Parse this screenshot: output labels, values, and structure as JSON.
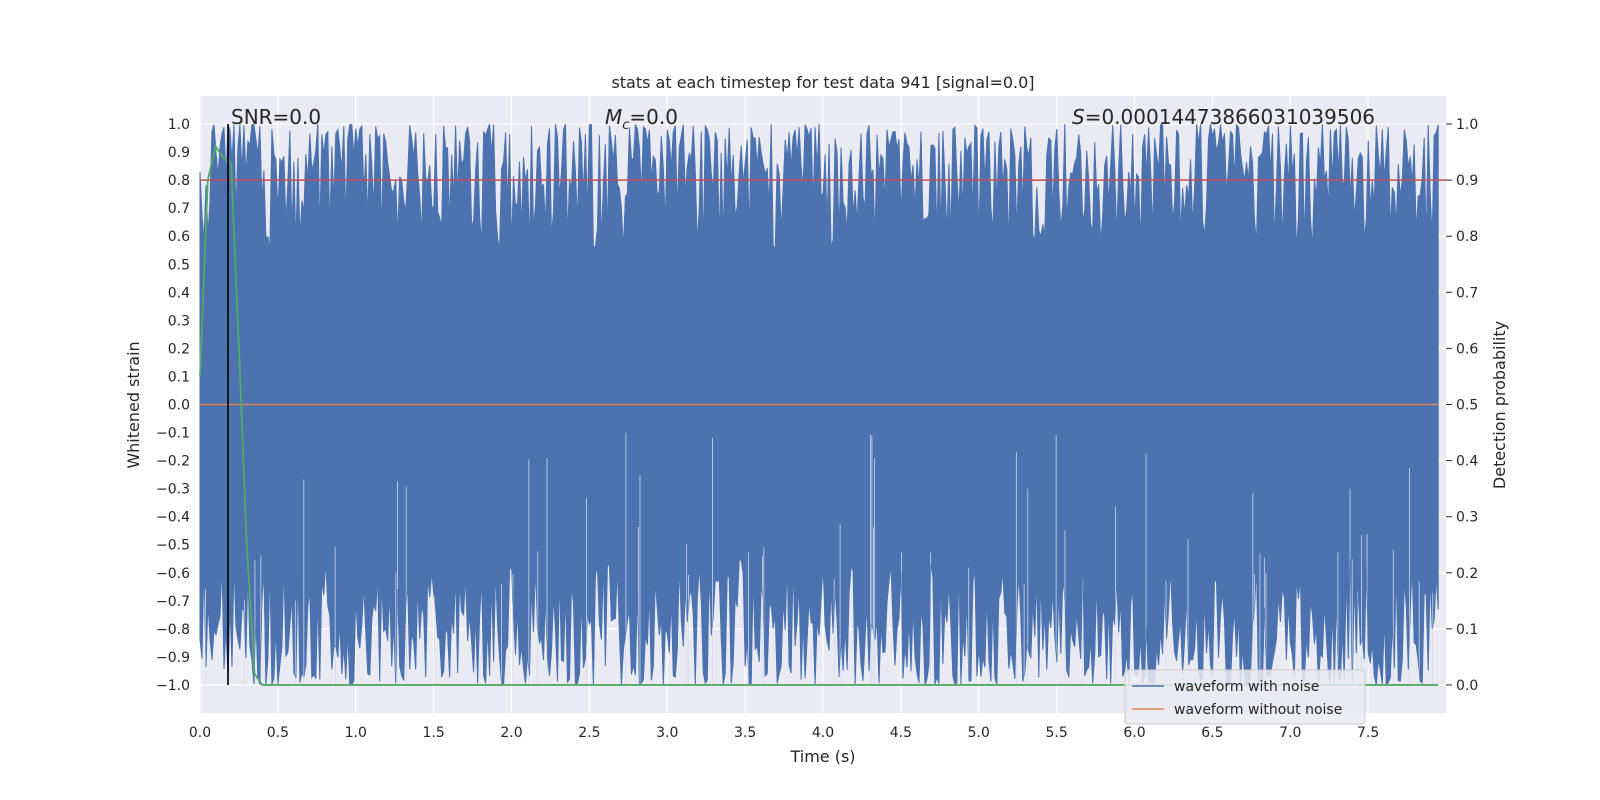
{
  "chart_data": {
    "type": "line",
    "title": "stats at each timestep for test data 941 [signal=0.0]",
    "xlabel": "Time (s)",
    "ylabel": "Whitened strain",
    "y2label": "Detection probability",
    "xlim": [
      0.0,
      8.0
    ],
    "ylim": [
      -1.1,
      1.1
    ],
    "y2lim": [
      -0.05,
      1.05
    ],
    "x_ticks": [
      0.0,
      0.5,
      1.0,
      1.5,
      2.0,
      2.5,
      3.0,
      3.5,
      4.0,
      4.5,
      5.0,
      5.5,
      6.0,
      6.5,
      7.0,
      7.5
    ],
    "x_tick_labels": [
      "0.0",
      "0.5",
      "1.0",
      "1.5",
      "2.0",
      "2.5",
      "3.0",
      "3.5",
      "4.0",
      "4.5",
      "5.0",
      "5.5",
      "6.0",
      "6.5",
      "7.0",
      "7.5"
    ],
    "y_ticks": [
      1.0,
      0.9,
      0.8,
      0.7,
      0.6,
      0.5,
      0.4,
      0.3,
      0.2,
      0.1,
      0.0,
      -0.1,
      -0.2,
      -0.3,
      -0.4,
      -0.5,
      -0.6,
      -0.7,
      -0.8,
      -0.9,
      -1.0
    ],
    "y_tick_labels": [
      "1.0",
      "0.9",
      "0.8",
      "0.7",
      "0.6",
      "0.5",
      "0.4",
      "0.3",
      "0.2",
      "0.1",
      "0.0",
      "−0.1",
      "−0.2",
      "−0.3",
      "−0.4",
      "−0.5",
      "−0.6",
      "−0.7",
      "−0.8",
      "−0.9",
      "−1.0"
    ],
    "y2_ticks": [
      1.0,
      0.9,
      0.8,
      0.7,
      0.6,
      0.5,
      0.4,
      0.3,
      0.2,
      0.1,
      0.0
    ],
    "y2_tick_labels": [
      "1.0",
      "0.9",
      "0.8",
      "0.7",
      "0.6",
      "0.5",
      "0.4",
      "0.3",
      "0.2",
      "0.1",
      "0.0"
    ],
    "annotations": {
      "snr": "SNR=0.0",
      "mc_symbol": "M",
      "mc_sub": "c",
      "mc_value": "=0.0",
      "s_symbol": "S",
      "s_value": "=0.00014473866031039506"
    },
    "grid": true,
    "legend_position": "lower right",
    "series": [
      {
        "name": "waveform with noise",
        "color": "#4c72b0",
        "axis": "left",
        "description_range": [
          -1.0,
          1.0
        ],
        "noise_band": true
      },
      {
        "name": "waveform without noise",
        "color": "#dd8452",
        "axis": "left",
        "x": [
          0.0,
          7.95
        ],
        "y": [
          0.0,
          0.0
        ]
      },
      {
        "color": "#55a868",
        "axis": "right",
        "x": [
          0.0,
          0.05,
          0.1,
          0.15,
          0.2,
          0.25,
          0.3,
          0.35,
          0.4,
          1.0,
          2.0,
          4.0,
          6.0,
          7.95
        ],
        "y": [
          0.55,
          0.9,
          0.96,
          0.94,
          0.93,
          0.6,
          0.25,
          0.02,
          0.0,
          0.0,
          0.0,
          0.0,
          0.0,
          0.0
        ]
      }
    ],
    "threshold_line": {
      "axis": "right",
      "y": 0.9,
      "color": "#c44e52"
    },
    "marker_line": {
      "x": 0.18,
      "color": "#000000"
    }
  }
}
